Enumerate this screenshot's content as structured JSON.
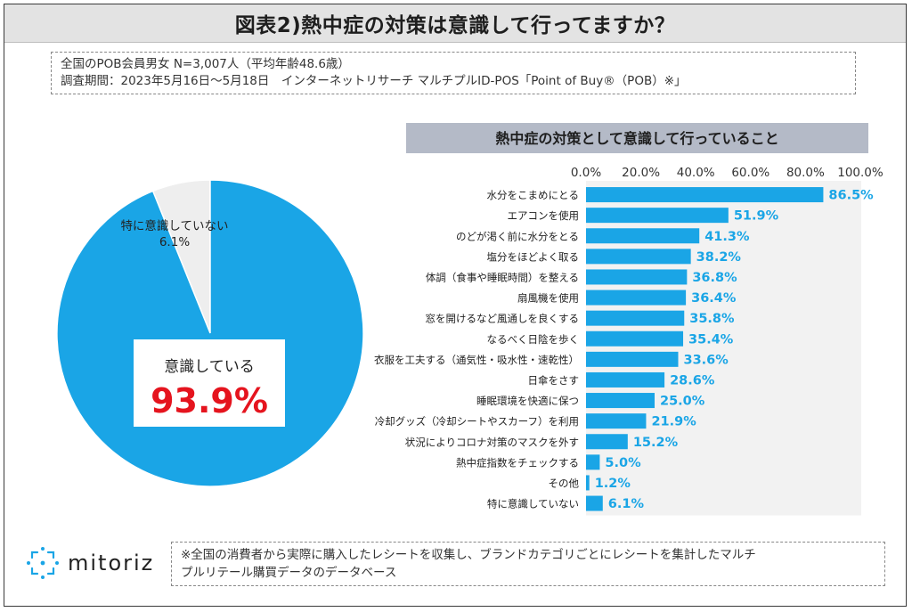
{
  "title": "図表2)熱中症の対策は意識して行ってますか？",
  "info": {
    "line1": "全国のPOB会員男女 N=3,007人（平均年齢48.6歳）",
    "line2": "調査期間：2023年5月16日～5月18日　インターネットリサーチ マルチプルID-POS「Point of Buy®（POB）※」"
  },
  "footer": {
    "note_line1": "※全国の消費者から実際に購入したレシートを収集し、ブランドカテゴリごとにレシートを集計したマルチ",
    "note_line2": "プルリテール購買データのデータベース",
    "logo_text": "mitoriz",
    "logo_icon": "mitoriz-logo-icon"
  },
  "colors": {
    "accent": "#1aa5e6",
    "pie_other": "#eeeeee",
    "highlight_text": "#e5141e",
    "bar_header_bg": "#b4bac7"
  },
  "chart_data": [
    {
      "type": "pie",
      "slices": [
        {
          "label": "意識している",
          "value": 93.9,
          "value_label": "93.9%"
        },
        {
          "label": "特に意識していない",
          "value": 6.1,
          "value_label": "6.1%"
        }
      ]
    },
    {
      "type": "bar",
      "orientation": "horizontal",
      "title": "熱中症の対策として意識して行っていること",
      "xlim": [
        0,
        100
      ],
      "tick_labels": [
        "0.0%",
        "20.0%",
        "40.0%",
        "60.0%",
        "80.0%",
        "100.0%"
      ],
      "tick_values": [
        0,
        20,
        40,
        60,
        80,
        100
      ],
      "grid": false,
      "categories": [
        "水分をこまめにとる",
        "エアコンを使用",
        "のどが渇く前に水分をとる",
        "塩分をほどよく取る",
        "体調（食事や睡眠時間）を整える",
        "扇風機を使用",
        "窓を開けるなど風通しを良くする",
        "なるべく日陰を歩く",
        "衣服を工夫する（通気性・吸水性・速乾性）",
        "日傘をさす",
        "睡眠環境を快適に保つ",
        "冷却グッズ（冷却シートやスカーフ）を利用",
        "状況によりコロナ対策のマスクを外す",
        "熱中症指数をチェックする",
        "その他",
        "特に意識していない"
      ],
      "values": [
        86.5,
        51.9,
        41.3,
        38.2,
        36.8,
        36.4,
        35.8,
        35.4,
        33.6,
        28.6,
        25.0,
        21.9,
        15.2,
        5.0,
        1.2,
        6.1
      ],
      "value_labels": [
        "86.5%",
        "51.9%",
        "41.3%",
        "38.2%",
        "36.8%",
        "36.4%",
        "35.8%",
        "35.4%",
        "33.6%",
        "28.6%",
        "25.0%",
        "21.9%",
        "15.2%",
        "5.0%",
        "1.2%",
        "6.1%"
      ]
    }
  ]
}
